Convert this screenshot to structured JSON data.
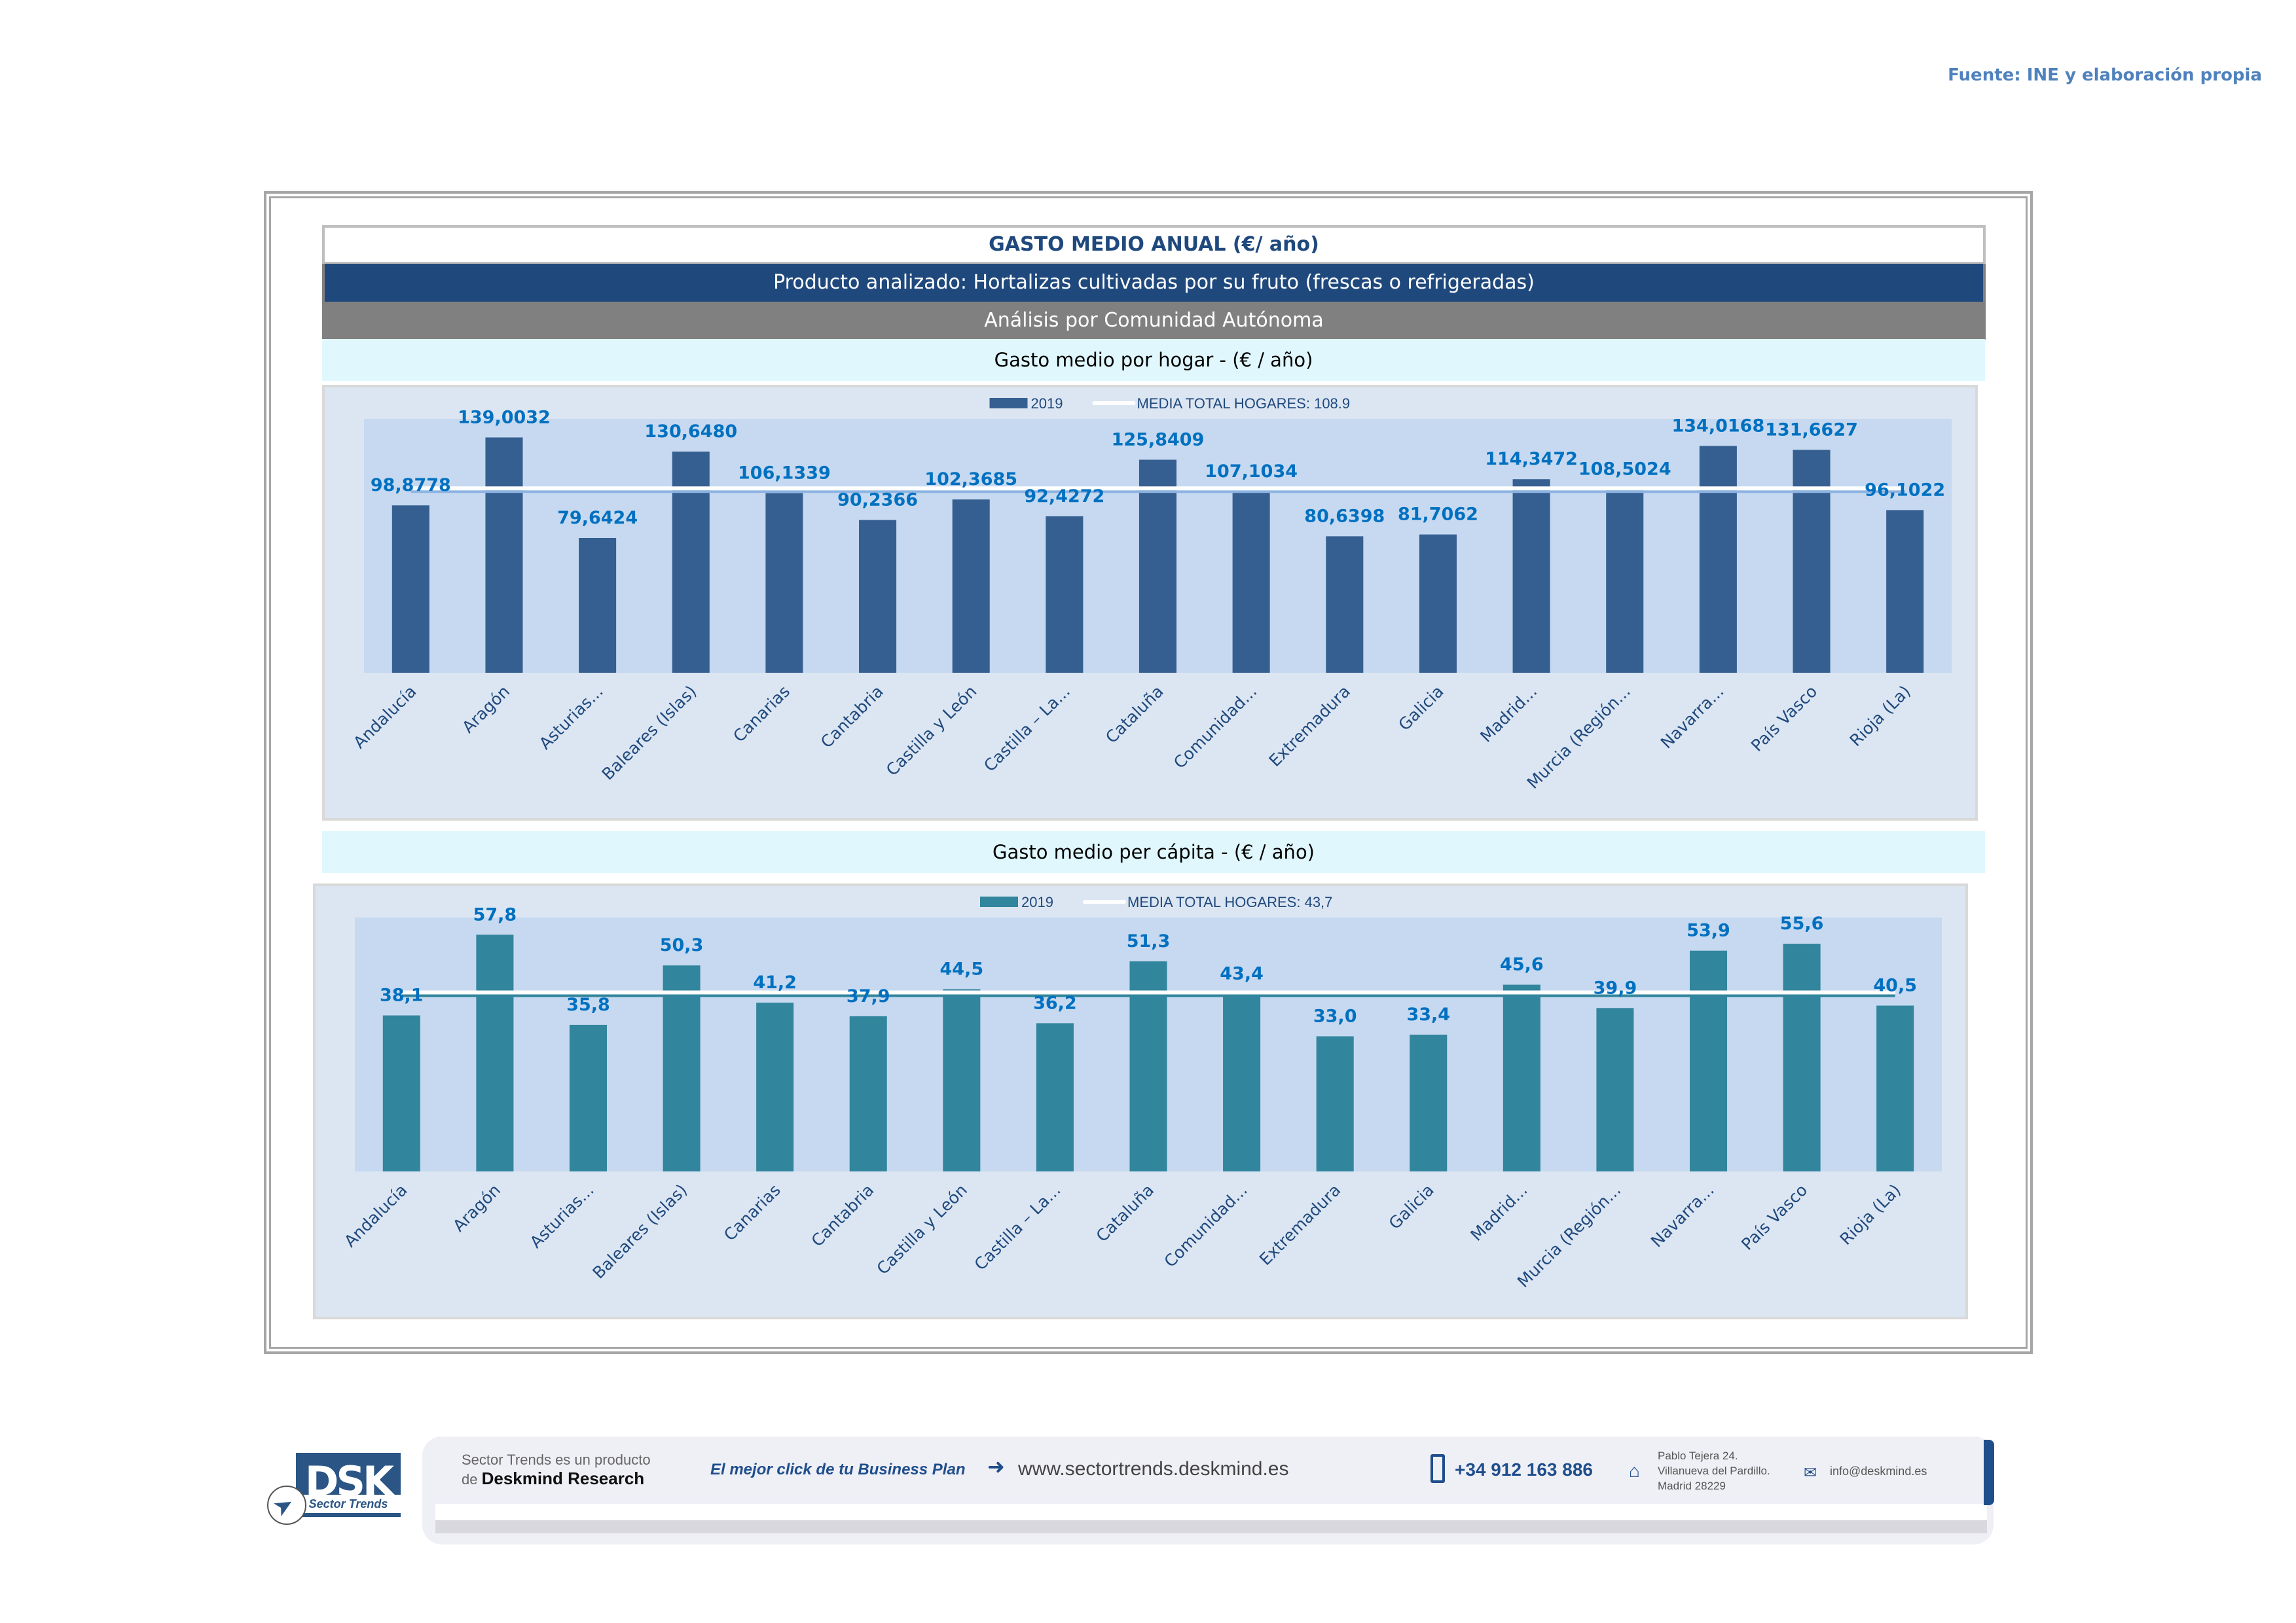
{
  "source": "Fuente: INE y elaboración propia",
  "header": {
    "title": "GASTO MEDIO ANUAL (€/ año)",
    "product": "Producto analizado: Hortalizas cultivadas por su fruto (frescas o refrigeradas)",
    "analysis": "Análisis por Comunidad Autónoma"
  },
  "chart_data": [
    {
      "type": "bar",
      "title": "Gasto medio por hogar -  (€ / año)",
      "xlabel": "",
      "ylabel": "",
      "categories": [
        "Andalucía",
        "Aragón",
        "Asturias...",
        "Baleares (Islas)",
        "Canarias",
        "Cantabria",
        "Castilla y León",
        "Castilla – La...",
        "Cataluña",
        "Comunidad...",
        "Extremadura",
        "Galicia",
        "Madrid...",
        "Murcia (Región...",
        "Navarra...",
        "País Vasco",
        "Rioja (La)"
      ],
      "series": [
        {
          "name": "2019",
          "color": "#365f91",
          "values": [
            98.8778,
            139.0032,
            79.6424,
            130.648,
            106.1339,
            90.2366,
            102.3685,
            92.4272,
            125.8409,
            107.1034,
            80.6398,
            81.7062,
            114.3472,
            108.5024,
            134.0168,
            131.6627,
            96.1022
          ],
          "labels": [
            "98,8778",
            "139,0032",
            "79,6424",
            "130,6480",
            "106,1339",
            "90,2366",
            "102,3685",
            "92,4272",
            "125,8409",
            "107,1034",
            "80,6398",
            "81,7062",
            "114,3472",
            "108,5024",
            "134,0168",
            "131,6627",
            "96,1022"
          ]
        }
      ],
      "reference_line": {
        "name": "MEDIA TOTAL  HOGARES:",
        "value": 108.9,
        "label": "108.9"
      },
      "legend": {
        "placement": "top-center",
        "entries": [
          "2019",
          "MEDIA TOTAL  HOGARES:   108.9"
        ]
      },
      "ylim": [
        0,
        150
      ],
      "grid": false
    },
    {
      "type": "bar",
      "title": "Gasto medio per cápita -  (€ / año)",
      "xlabel": "",
      "ylabel": "",
      "categories": [
        "Andalucía",
        "Aragón",
        "Asturias...",
        "Baleares (Islas)",
        "Canarias",
        "Cantabria",
        "Castilla y León",
        "Castilla – La...",
        "Cataluña",
        "Comunidad...",
        "Extremadura",
        "Galicia",
        "Madrid...",
        "Murcia (Región...",
        "Navarra...",
        "País Vasco",
        "Rioja (La)"
      ],
      "series": [
        {
          "name": "2019",
          "color": "#31859c",
          "values": [
            38.1,
            57.8,
            35.8,
            50.3,
            41.2,
            37.9,
            44.5,
            36.2,
            51.3,
            43.4,
            33.0,
            33.4,
            45.6,
            39.9,
            53.9,
            55.6,
            40.5
          ],
          "labels": [
            "38,1",
            "57,8",
            "35,8",
            "50,3",
            "41,2",
            "37,9",
            "44,5",
            "36,2",
            "51,3",
            "43,4",
            "33,0",
            "33,4",
            "45,6",
            "39,9",
            "53,9",
            "55,6",
            "40,5"
          ]
        }
      ],
      "reference_line": {
        "name": "MEDIA TOTAL  HOGARES:",
        "value": 43.7,
        "label": "43,7"
      },
      "legend": {
        "placement": "top-center",
        "entries": [
          "2019",
          "MEDIA TOTAL  HOGARES:   43,7"
        ]
      },
      "ylim": [
        0,
        62
      ],
      "grid": false
    }
  ],
  "footer": {
    "logo_text": "DSK",
    "logo_sub": "Sector Trends",
    "product_line1": "Sector Trends es un producto",
    "product_line2_prefix": "de ",
    "product_line2_brand": "Deskmind Research",
    "slogan": "El mejor click de tu Business Plan",
    "website": "www.sectortrends.deskmind.es",
    "phone": "+34 912 163 886",
    "address_line1": "Pablo Tejera 24.",
    "address_line2": "Villanueva del Pardillo.",
    "address_line3": "Madrid 28229",
    "email": "info@deskmind.es"
  }
}
